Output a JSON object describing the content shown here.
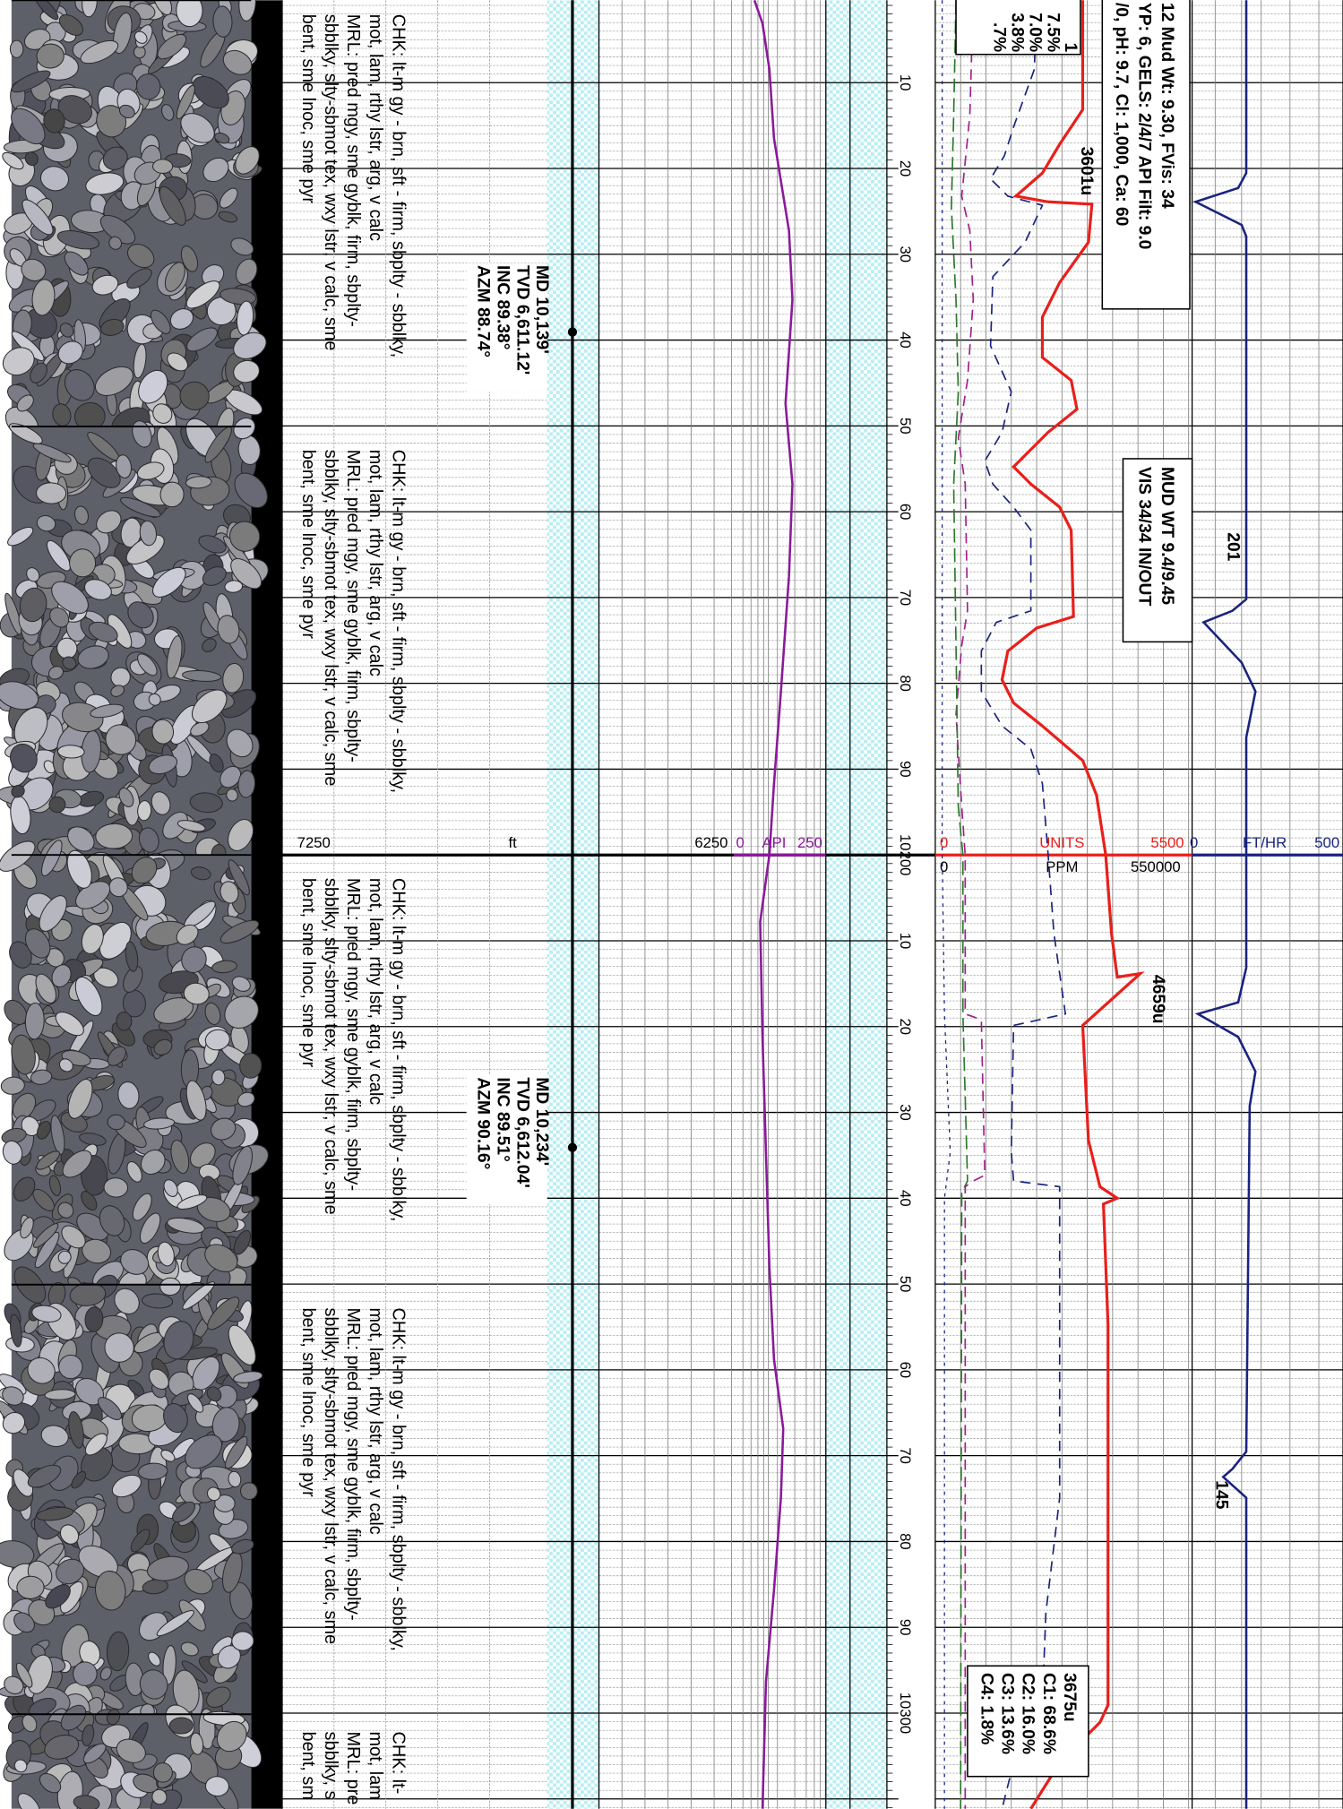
{
  "descriptions": [
    {
      "lines": [
        "CHK: lt-m gy - brn, sft - firm, sbplty - sbblky,",
        "mot, lam, rthy lstr, arg, v calc",
        "MRL: pred mgy, sme gyblk, firm, sbplty-",
        "sbblky, slty-sbmot tex, wxy lstr, v calc, sme",
        "bent, sme lnoc, sme pyr"
      ]
    },
    {
      "lines": [
        "CHK: lt-m gy - brn, sft - firm, sbplty - sbblky,",
        "mot, lam, rthy lstr, arg, v calc",
        "MRL: pred mgy, sme gyblk, firm, sbplty-",
        "sbblky, slty-sbmot tex, wxy lstr, v calc, sme",
        "bent, sme lnoc, sme pyr"
      ]
    },
    {
      "lines": [
        "CHK: lt-m gy - brn, sft - firm, sbplty - sbblky,",
        "mot, lam, rthy lstr, arg, v calc",
        "MRL: pred mgy, sme gyblk, firm, sbplty-",
        "sbblky, slty-sbmot tex, wxy lstr, v calc, sme",
        "bent, sme lnoc, sme pyr"
      ]
    },
    {
      "lines": [
        "CHK: lt-m gy - brn, sft - firm, sbplty - sbblky,",
        "mot, lam, rthy lstr, arg, v calc",
        "MRL: pred mgy, sme gyblk, firm, sbplty-",
        "sbblky, slty-sbmot tex, wxy lstr, v calc, sme",
        "bent, sme lnoc, sme pyr"
      ]
    },
    {
      "lines": [
        "CHK: lt-",
        "mot, lam",
        "MRL: pre",
        "sbblky, s",
        "bent, sm"
      ]
    }
  ],
  "surveys": [
    {
      "lines": [
        "MD 10,139'",
        "TVD 6,611.12'",
        "INC 89.38°",
        "AZM 88.74°"
      ]
    },
    {
      "lines": [
        "MD 10,234'",
        "TVD 6,612.04'",
        "INC 89.51°",
        "AZM 90.16°"
      ]
    }
  ],
  "scales": {
    "depth": {
      "min": "7250",
      "unit": "ft",
      "max": "6250"
    },
    "gamma": {
      "min": "0",
      "unit": "API",
      "max": "250"
    },
    "gas": {
      "min": "0",
      "unit": "UNITS",
      "max": "5500"
    },
    "chromatograph": {
      "min": "0",
      "unit": "PPM",
      "max": "550000"
    },
    "rop": {
      "min": "0",
      "unit": "FT/HR",
      "max": "500"
    }
  },
  "depth_labels": [
    "10",
    "20",
    "30",
    "40",
    "50",
    "60",
    "70",
    "80",
    "90",
    "10200",
    "10",
    "20",
    "30",
    "40",
    "50",
    "60",
    "70",
    "80",
    "90",
    "10300"
  ],
  "annotations": {
    "mud_report": [
      "12 Mud Wt: 9.30, FVis: 34",
      "YP: 6, GELS: 2/4/7 API Filt: 9.0",
      "/0, pH: 9.7, Cl: 1,000, Ca: 60"
    ],
    "gas_ratios_top": [
      "1",
      "7.5%",
      "7.0%",
      "3.8%",
      ".7%"
    ],
    "peak_1": "3601u",
    "mud_weight": [
      "MUD WT 9.4/9.45",
      "VIS 34/34 IN/OUT"
    ],
    "rop_1": "201",
    "peak_2": "4659u",
    "rop_2": "145",
    "gas_sample": [
      "3675u",
      "C1: 68.6%",
      "C2: 16.0%",
      "C3: 13.6%",
      "C4: 1.8%"
    ]
  }
}
